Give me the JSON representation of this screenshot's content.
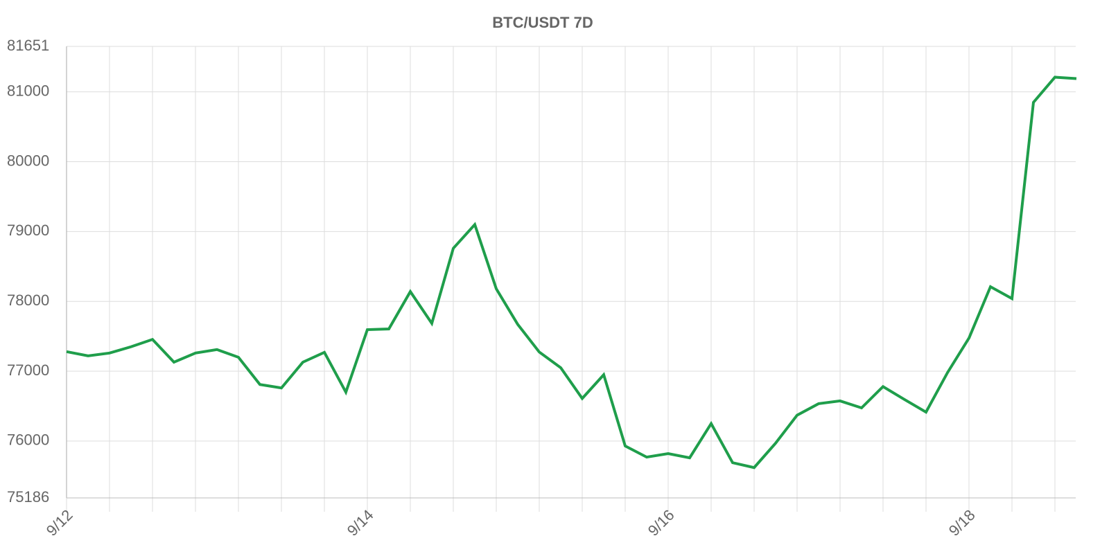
{
  "chart_data": {
    "type": "line",
    "title": "BTC/USDT 7D",
    "categories": [
      "9/12",
      null,
      null,
      null,
      null,
      null,
      null,
      null,
      null,
      null,
      null,
      null,
      null,
      null,
      "9/14",
      null,
      null,
      null,
      null,
      null,
      null,
      null,
      null,
      null,
      null,
      null,
      null,
      null,
      "9/16",
      null,
      null,
      null,
      null,
      null,
      null,
      null,
      null,
      null,
      null,
      null,
      null,
      null,
      "9/18",
      null,
      null,
      null,
      null,
      null
    ],
    "series": [
      {
        "name": "BTC/USDT",
        "color": "#1f9e4b",
        "values": [
          77280,
          77220,
          77260,
          77350,
          77455,
          77130,
          77260,
          77310,
          77200,
          76810,
          76760,
          77130,
          77270,
          76700,
          77595,
          77605,
          78140,
          77685,
          78760,
          79100,
          78180,
          77670,
          77275,
          77050,
          76610,
          76950,
          75930,
          75770,
          75820,
          75760,
          76250,
          75690,
          75620,
          75970,
          76370,
          76535,
          76575,
          76475,
          76780,
          76595,
          76415,
          76980,
          77475,
          78210,
          78040,
          80850,
          81210,
          81190
        ]
      }
    ],
    "ylim": [
      75186,
      81651
    ],
    "yticks": [
      75186,
      76000,
      77000,
      78000,
      79000,
      80000,
      81000,
      81651
    ],
    "grid": true
  }
}
